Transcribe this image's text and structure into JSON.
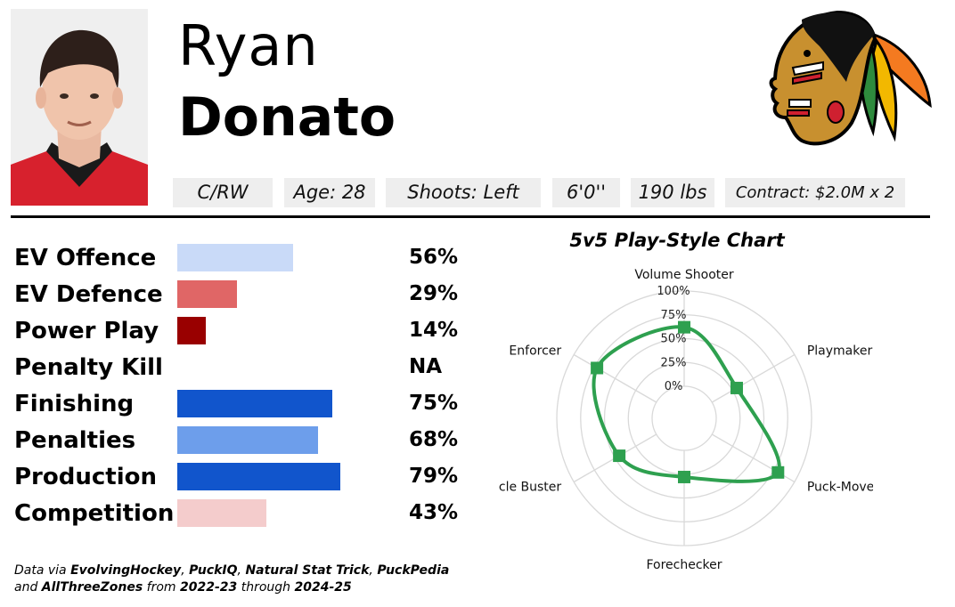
{
  "player": {
    "first_name": "Ryan",
    "last_name": "Donato",
    "position": "C/RW",
    "age": "Age: 28",
    "shoots": "Shoots: Left",
    "height": "6'0''",
    "weight": "190 lbs",
    "contract": "Contract: $2.0M x 2"
  },
  "metrics": [
    {
      "label": "EV Offence",
      "value": 56,
      "display": "56%",
      "color": "#c9daf8"
    },
    {
      "label": "EV Defence",
      "value": 29,
      "display": "29%",
      "color": "#e06666"
    },
    {
      "label": "Power Play",
      "value": 14,
      "display": "14%",
      "color": "#990000"
    },
    {
      "label": "Penalty Kill",
      "value": null,
      "display": "NA",
      "color": "#ffffff"
    },
    {
      "label": "Finishing",
      "value": 75,
      "display": "75%",
      "color": "#1155cc"
    },
    {
      "label": "Penalties",
      "value": 68,
      "display": "68%",
      "color": "#6d9eeb"
    },
    {
      "label": "Production",
      "value": 79,
      "display": "79%",
      "color": "#1155cc"
    },
    {
      "label": "Competition",
      "value": 43,
      "display": "43%",
      "color": "#f4cccc"
    }
  ],
  "chart_data": {
    "type": "radar",
    "title": "5v5 Play-Style Chart",
    "axes": [
      "Volume Shooter",
      "Playmaker",
      "Puck-Mover",
      "Forechecker",
      "Cycle Buster",
      "Enforcer"
    ],
    "values": [
      62,
      30,
      80,
      28,
      45,
      72
    ],
    "rlim": [
      0,
      100
    ],
    "rticks": [
      "0%",
      "25%",
      "50%",
      "75%",
      "100%"
    ],
    "line_color": "#2ea04f",
    "grid": true
  },
  "footnote": {
    "line1_prefix": "Data via ",
    "src1": "EvolvingHockey",
    "sep1": ", ",
    "src2": "PuckIQ",
    "sep2": ", ",
    "src3": "Natural Stat Trick",
    "sep3": ", ",
    "src4": "PuckPedia",
    "line2_prefix": "and ",
    "src5": "AllThreeZones",
    "from": " from ",
    "season_start": "2022-23",
    "through": " through ",
    "season_end": "2024-25"
  },
  "colors": {
    "jersey_red": "#d7212d",
    "logo_skin": "#c8902f"
  },
  "icons": {
    "headshot": "player-headshot-image",
    "logo": "chicago-blackhawks-logo"
  }
}
